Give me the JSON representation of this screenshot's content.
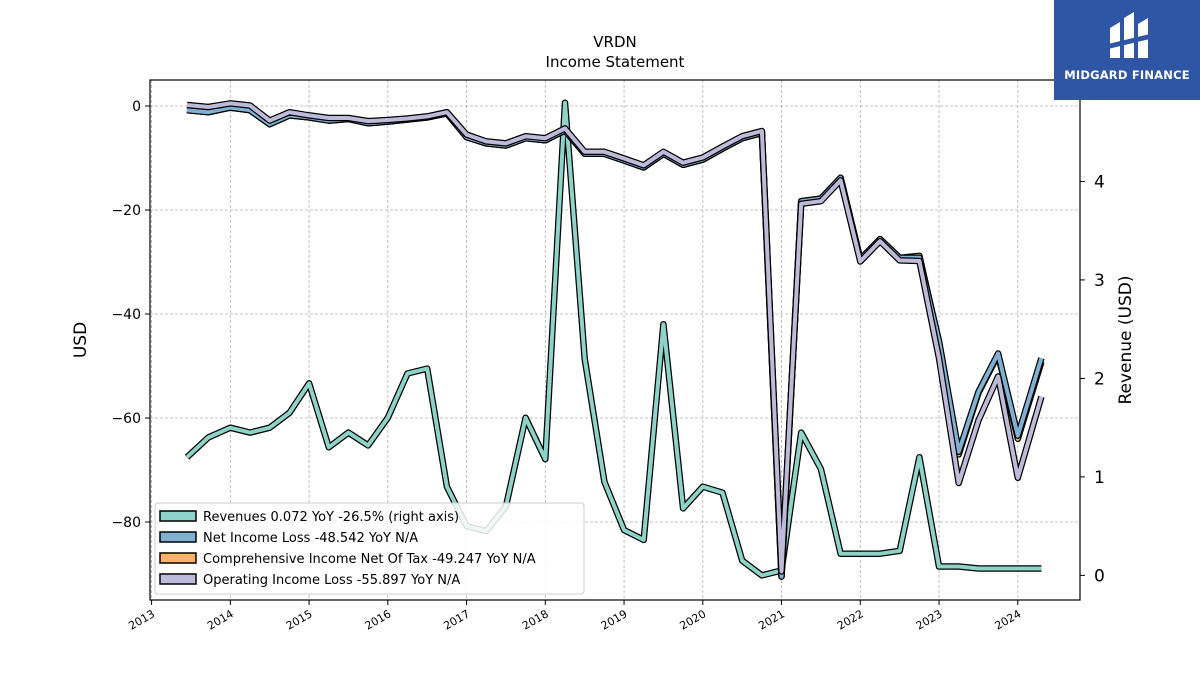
{
  "logo": {
    "text": "MIDGARD FINANCE"
  },
  "chart_data": {
    "type": "line",
    "title": "VRDN",
    "subtitle": "Income Statement",
    "ylabel": "USD",
    "y2label": "Revenue (USD)",
    "ylim": [
      -95,
      5
    ],
    "y2lim": [
      -0.25,
      5.03
    ],
    "yticks": [
      0,
      -20,
      -40,
      -60,
      -80
    ],
    "y2ticks": [
      0,
      1,
      2,
      3,
      4
    ],
    "xlim": [
      2012.98,
      2024.79
    ],
    "xticks": [
      "2013",
      "2014",
      "2015",
      "2016",
      "2017",
      "2018",
      "2019",
      "2020",
      "2021",
      "2022",
      "2023",
      "2024"
    ],
    "grid": true,
    "legend_position": "lower-left",
    "series": [
      {
        "name": "Revenues",
        "legend": "Revenues  0.072 YoY -26.5% (right axis)",
        "color": "#8dd3c7",
        "axis": "right",
        "x": [
          2013.45,
          2013.72,
          2014.0,
          2014.25,
          2014.5,
          2014.75,
          2015.0,
          2015.25,
          2015.5,
          2015.75,
          2016.0,
          2016.25,
          2016.5,
          2016.75,
          2017.0,
          2017.25,
          2017.5,
          2017.75,
          2018.0,
          2018.25,
          2018.5,
          2018.75,
          2019.0,
          2019.25,
          2019.5,
          2019.75,
          2020.0,
          2020.25,
          2020.5,
          2020.75,
          2021.0,
          2021.25,
          2021.5,
          2021.75,
          2022.0,
          2022.25,
          2022.5,
          2022.75,
          2023.0,
          2023.25,
          2023.5,
          2023.75,
          2024.0,
          2024.3
        ],
        "values": [
          1.2,
          1.4,
          1.5,
          1.45,
          1.5,
          1.65,
          1.95,
          1.3,
          1.45,
          1.32,
          1.6,
          2.05,
          2.1,
          0.9,
          0.5,
          0.45,
          0.7,
          1.6,
          1.18,
          4.8,
          2.2,
          0.95,
          0.46,
          0.36,
          2.55,
          0.68,
          0.9,
          0.84,
          0.15,
          0.0,
          0.05,
          1.45,
          1.08,
          0.22,
          0.22,
          0.22,
          0.25,
          1.2,
          0.09,
          0.09,
          0.07,
          0.07,
          0.07,
          0.07
        ]
      },
      {
        "name": "Net Income Loss",
        "legend": "Net Income Loss  -48.542 YoY N/A",
        "color": "#80b1d3",
        "axis": "left",
        "x": [
          2013.45,
          2013.72,
          2014.0,
          2014.25,
          2014.5,
          2014.75,
          2015.0,
          2015.25,
          2015.5,
          2015.75,
          2016.0,
          2016.25,
          2016.5,
          2016.75,
          2017.0,
          2017.25,
          2017.5,
          2017.75,
          2018.0,
          2018.25,
          2018.5,
          2018.75,
          2019.0,
          2019.25,
          2019.5,
          2019.75,
          2020.0,
          2020.25,
          2020.5,
          2020.75,
          2021.0,
          2021.25,
          2021.5,
          2021.75,
          2022.0,
          2022.25,
          2022.5,
          2022.75,
          2023.0,
          2023.25,
          2023.5,
          2023.75,
          2024.0,
          2024.3
        ],
        "values": [
          -0.8,
          -1.2,
          -0.3,
          -0.8,
          -3.5,
          -1.8,
          -2.2,
          -2.8,
          -2.5,
          -3.3,
          -3.0,
          -2.6,
          -2.2,
          -1.4,
          -6.0,
          -7.2,
          -7.6,
          -6.2,
          -6.6,
          -4.7,
          -9.2,
          -9.2,
          -10.5,
          -11.8,
          -9.2,
          -11.3,
          -10.3,
          -8.2,
          -6.2,
          -5.2,
          -90.5,
          -18.3,
          -17.8,
          -13.8,
          -29.5,
          -25.6,
          -29.2,
          -29.2,
          -45.2,
          -66.5,
          -55.0,
          -47.6,
          -63.4,
          -48.5
        ]
      },
      {
        "name": "Comprehensive Income Net Of Tax",
        "legend": "Comprehensive Income Net Of Tax  -49.247 YoY N/A",
        "color": "#fdb462",
        "axis": "left",
        "x": [
          2013.45,
          2013.72,
          2014.0,
          2014.25,
          2014.5,
          2014.75,
          2015.0,
          2015.25,
          2015.5,
          2015.75,
          2016.0,
          2016.25,
          2016.5,
          2016.75,
          2017.0,
          2017.25,
          2017.5,
          2017.75,
          2018.0,
          2018.25,
          2018.5,
          2018.75,
          2019.0,
          2019.25,
          2019.5,
          2019.75,
          2020.0,
          2020.25,
          2020.5,
          2020.75,
          2021.0,
          2021.25,
          2021.5,
          2021.75,
          2022.0,
          2022.25,
          2022.5,
          2022.75,
          2023.0,
          2023.25,
          2023.5,
          2023.75,
          2024.0,
          2024.3
        ],
        "values": [
          -0.8,
          -1.2,
          -0.3,
          -0.8,
          -3.5,
          -1.8,
          -2.2,
          -2.8,
          -2.5,
          -3.3,
          -3.0,
          -2.6,
          -2.2,
          -1.4,
          -6.0,
          -7.2,
          -7.6,
          -6.2,
          -6.6,
          -4.7,
          -9.2,
          -9.2,
          -10.5,
          -11.8,
          -9.2,
          -11.3,
          -10.3,
          -8.2,
          -6.2,
          -5.2,
          -90.5,
          -18.3,
          -17.8,
          -13.8,
          -29.5,
          -25.6,
          -29.2,
          -28.8,
          -45.5,
          -67.0,
          -55.2,
          -47.8,
          -64.0,
          -49.2
        ]
      },
      {
        "name": "Operating Income Loss",
        "legend": "Operating Income Loss  -55.897 YoY N/A",
        "color": "#bebada",
        "axis": "left",
        "x": [
          2013.45,
          2013.72,
          2014.0,
          2014.25,
          2014.5,
          2014.75,
          2015.0,
          2015.25,
          2015.5,
          2015.75,
          2016.0,
          2016.25,
          2016.5,
          2016.75,
          2017.0,
          2017.25,
          2017.5,
          2017.75,
          2018.0,
          2018.25,
          2018.5,
          2018.75,
          2019.0,
          2019.25,
          2019.5,
          2019.75,
          2020.0,
          2020.25,
          2020.5,
          2020.75,
          2021.0,
          2021.25,
          2021.5,
          2021.75,
          2022.0,
          2022.25,
          2022.5,
          2022.75,
          2023.0,
          2023.25,
          2023.5,
          2023.75,
          2024.0,
          2024.3
        ],
        "values": [
          0.2,
          -0.2,
          0.5,
          0.1,
          -2.8,
          -1.2,
          -1.8,
          -2.3,
          -2.3,
          -2.9,
          -2.7,
          -2.4,
          -2.0,
          -1.2,
          -5.5,
          -6.8,
          -7.2,
          -5.8,
          -6.2,
          -4.3,
          -8.8,
          -8.8,
          -10.1,
          -11.4,
          -8.8,
          -10.9,
          -9.9,
          -7.8,
          -5.8,
          -4.8,
          -89.5,
          -18.8,
          -18.3,
          -14.3,
          -29.9,
          -26.0,
          -29.7,
          -29.8,
          -48.5,
          -72.5,
          -60.5,
          -52.0,
          -71.5,
          -55.9
        ]
      }
    ]
  }
}
